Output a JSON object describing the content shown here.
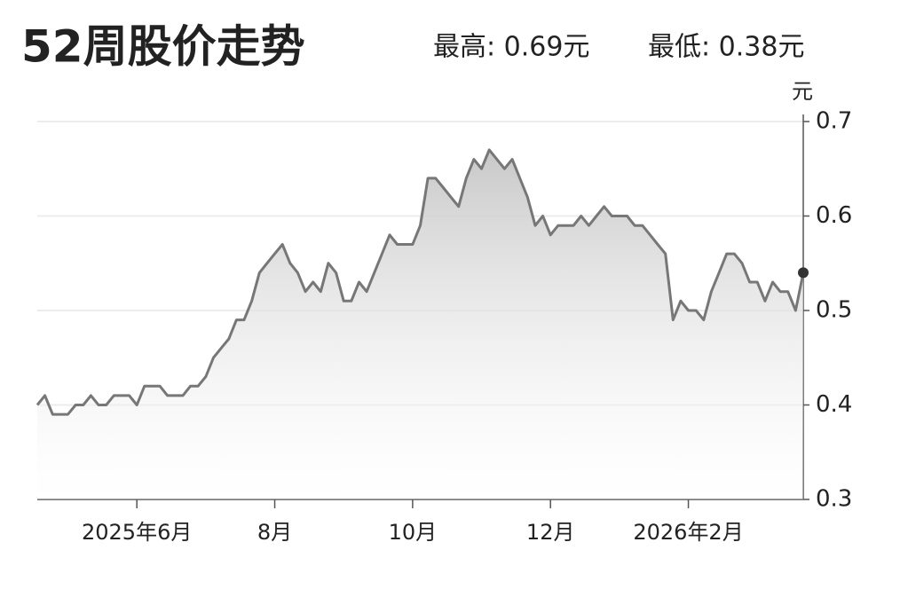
{
  "chart_data": {
    "type": "line",
    "title": "52周股价走势",
    "annotations": [
      "最高: 0.69元",
      "最低: 0.38元"
    ],
    "ylabel": "元",
    "categories": [
      null,
      null,
      null,
      null,
      null,
      null,
      null,
      null,
      null,
      null,
      null,
      null,
      null,
      "2025年6月",
      null,
      null,
      null,
      null,
      null,
      null,
      null,
      null,
      null,
      null,
      null,
      null,
      null,
      null,
      null,
      null,
      null,
      "8月",
      null,
      null,
      null,
      null,
      null,
      null,
      null,
      null,
      null,
      null,
      null,
      null,
      null,
      null,
      null,
      null,
      null,
      "10月",
      null,
      null,
      null,
      null,
      null,
      null,
      null,
      null,
      null,
      null,
      null,
      null,
      null,
      null,
      null,
      null,
      null,
      "12月",
      null,
      null,
      null,
      null,
      null,
      null,
      null,
      null,
      null,
      null,
      null,
      null,
      null,
      null,
      null,
      null,
      null,
      "2026年2月",
      null,
      null,
      null,
      null,
      null,
      null,
      null,
      null,
      null,
      null,
      null,
      null,
      null,
      null,
      null
    ],
    "values": [
      0.4,
      0.41,
      0.39,
      0.39,
      0.39,
      0.4,
      0.4,
      0.41,
      0.4,
      0.4,
      0.41,
      0.41,
      0.41,
      0.4,
      0.42,
      0.42,
      0.42,
      0.41,
      0.41,
      0.41,
      0.42,
      0.42,
      0.43,
      0.45,
      0.46,
      0.47,
      0.49,
      0.49,
      0.51,
      0.54,
      0.55,
      0.56,
      0.57,
      0.55,
      0.54,
      0.52,
      0.53,
      0.52,
      0.55,
      0.54,
      0.51,
      0.51,
      0.53,
      0.52,
      0.54,
      0.56,
      0.58,
      0.57,
      0.57,
      0.57,
      0.59,
      0.64,
      0.64,
      0.63,
      0.62,
      0.61,
      0.64,
      0.66,
      0.65,
      0.67,
      0.66,
      0.65,
      0.66,
      0.64,
      0.62,
      0.59,
      0.6,
      0.58,
      0.59,
      0.59,
      0.59,
      0.6,
      0.59,
      0.6,
      0.61,
      0.6,
      0.6,
      0.6,
      0.59,
      0.59,
      0.58,
      0.57,
      0.56,
      0.49,
      0.51,
      0.5,
      0.5,
      0.49,
      0.52,
      0.54,
      0.56,
      0.56,
      0.55,
      0.53,
      0.53,
      0.51,
      0.53,
      0.52,
      0.52,
      0.5,
      0.54
    ],
    "color": "#777777",
    "ylim": [
      0.3,
      0.7
    ],
    "yticks": [
      0.3,
      0.4,
      0.5,
      0.6,
      0.7
    ],
    "grid": true
  }
}
